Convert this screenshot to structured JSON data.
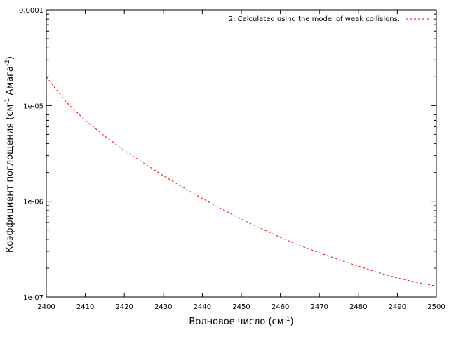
{
  "chart_data": {
    "type": "line",
    "xlabel": "Волновое число (см",
    "xlabel_sup": "-1",
    "xlabel_end": ")",
    "ylabel": "Коэффициент поглощения (см",
    "ylabel_sup1": "-1",
    "ylabel_mid": " Амага",
    "ylabel_sup2": "-2",
    "ylabel_end": ")",
    "xlim": [
      2400,
      2500
    ],
    "ylim": [
      1e-07,
      0.0001
    ],
    "yscale": "log",
    "grid": false,
    "legend_position": "top-right",
    "x_ticks": [
      2400,
      2410,
      2420,
      2430,
      2440,
      2450,
      2460,
      2470,
      2480,
      2490,
      2500
    ],
    "x_tick_labels": [
      "2400",
      "2410",
      "2420",
      "2430",
      "2440",
      "2450",
      "2460",
      "2470",
      "2480",
      "2490",
      "2500"
    ],
    "y_ticks": [
      1e-07,
      1e-06,
      1e-05,
      0.0001
    ],
    "y_tick_labels": [
      "1e-07",
      "1e-06",
      "1e-05",
      "0.0001"
    ],
    "series": [
      {
        "name": "2. Calculated using the model of weak collisions.",
        "color": "#ff0000",
        "style": "dashed",
        "x": [
          2400,
          2405,
          2410,
          2415,
          2420,
          2425,
          2430,
          2435,
          2440,
          2445,
          2450,
          2455,
          2460,
          2465,
          2470,
          2475,
          2480,
          2485,
          2490,
          2495,
          2500
        ],
        "y": [
          2e-05,
          1.1e-05,
          7e-06,
          4.8e-06,
          3.4e-06,
          2.5e-06,
          1.85e-06,
          1.4e-06,
          1.07e-06,
          8.3e-07,
          6.5e-07,
          5.2e-07,
          4.2e-07,
          3.45e-07,
          2.9e-07,
          2.45e-07,
          2.1e-07,
          1.8e-07,
          1.58e-07,
          1.42e-07,
          1.3e-07
        ]
      }
    ]
  }
}
